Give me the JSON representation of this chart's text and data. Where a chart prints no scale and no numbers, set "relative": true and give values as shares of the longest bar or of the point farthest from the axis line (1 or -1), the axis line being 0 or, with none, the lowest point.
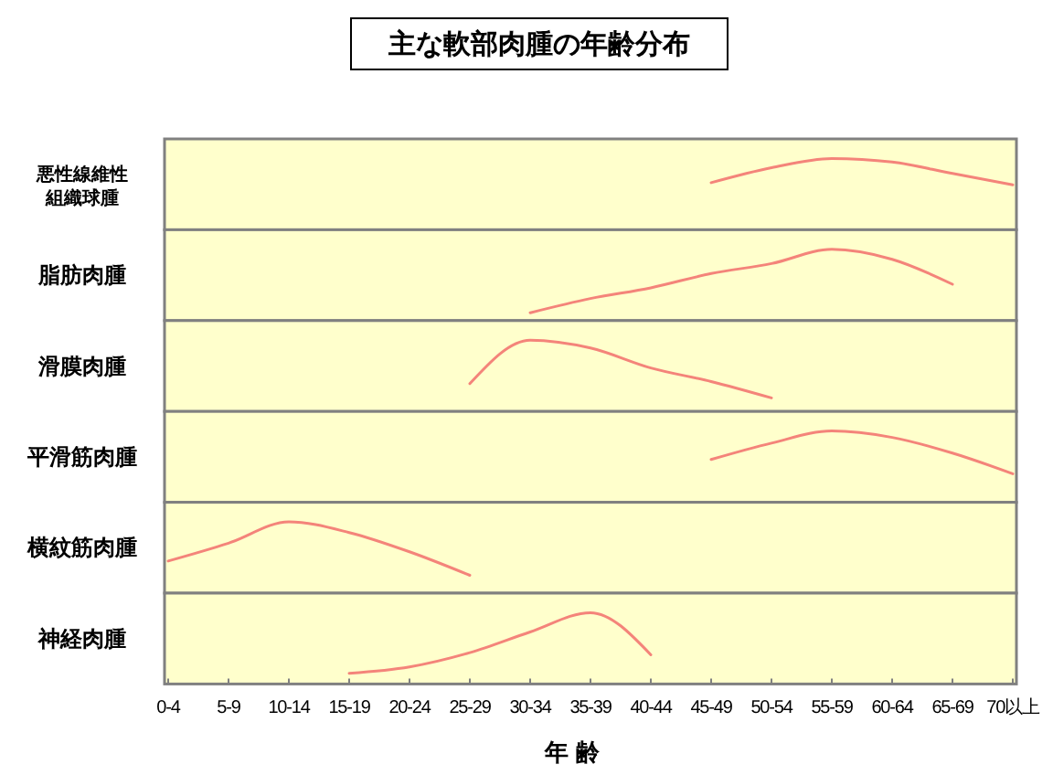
{
  "chart_data": [
    {
      "type": "line",
      "title": "主な軟部肉腫の年齢分布",
      "ylabel": "悪性線維性組織球腫",
      "relative": true,
      "tick_labels": false,
      "color": "#f4847a",
      "values": [
        null,
        null,
        null,
        null,
        null,
        null,
        null,
        null,
        null,
        0.66,
        0.87,
        1,
        0.95,
        0.79,
        0.63
      ]
    },
    {
      "type": "line",
      "ylabel": "脂肪肉腫",
      "relative": true,
      "tick_labels": false,
      "color": "#f4847a",
      "values": [
        null,
        null,
        null,
        null,
        null,
        null,
        0.11,
        0.31,
        0.46,
        0.66,
        0.8,
        1,
        0.86,
        0.51,
        null
      ]
    },
    {
      "type": "line",
      "ylabel": "滑膜肉腫",
      "relative": true,
      "tick_labels": false,
      "color": "#f4847a",
      "values": [
        null,
        null,
        null,
        null,
        null,
        0.39,
        1,
        0.89,
        0.61,
        0.42,
        0.19,
        null,
        null,
        null,
        null
      ]
    },
    {
      "type": "line",
      "ylabel": "平滑筋肉腫",
      "relative": true,
      "tick_labels": false,
      "color": "#f4847a",
      "values": [
        null,
        null,
        null,
        null,
        null,
        null,
        null,
        null,
        null,
        0.6,
        0.83,
        1,
        0.91,
        0.69,
        0.4
      ]
    },
    {
      "type": "line",
      "ylabel": "横紋筋肉腫",
      "relative": true,
      "tick_labels": false,
      "color": "#f4847a",
      "values": [
        0.45,
        0.7,
        1,
        0.85,
        0.58,
        0.25,
        null,
        null,
        null,
        null,
        null,
        null,
        null,
        null,
        null
      ]
    },
    {
      "type": "line",
      "ylabel": "神経肉腫",
      "xlabel": "年 齢",
      "relative": true,
      "tick_labels": "x",
      "color": "#f4847a",
      "categories": [
        "0-4",
        "5-9",
        "10-14",
        "15-19",
        "20-24",
        "25-29",
        "30-34",
        "35-39",
        "40-44",
        "45-49",
        "50-54",
        "55-59",
        "60-64",
        "65-69",
        "70以上"
      ],
      "values": [
        null,
        null,
        null,
        0.15,
        0.24,
        0.44,
        0.73,
        1,
        0.41,
        null,
        null,
        null,
        null,
        null,
        null
      ]
    }
  ]
}
